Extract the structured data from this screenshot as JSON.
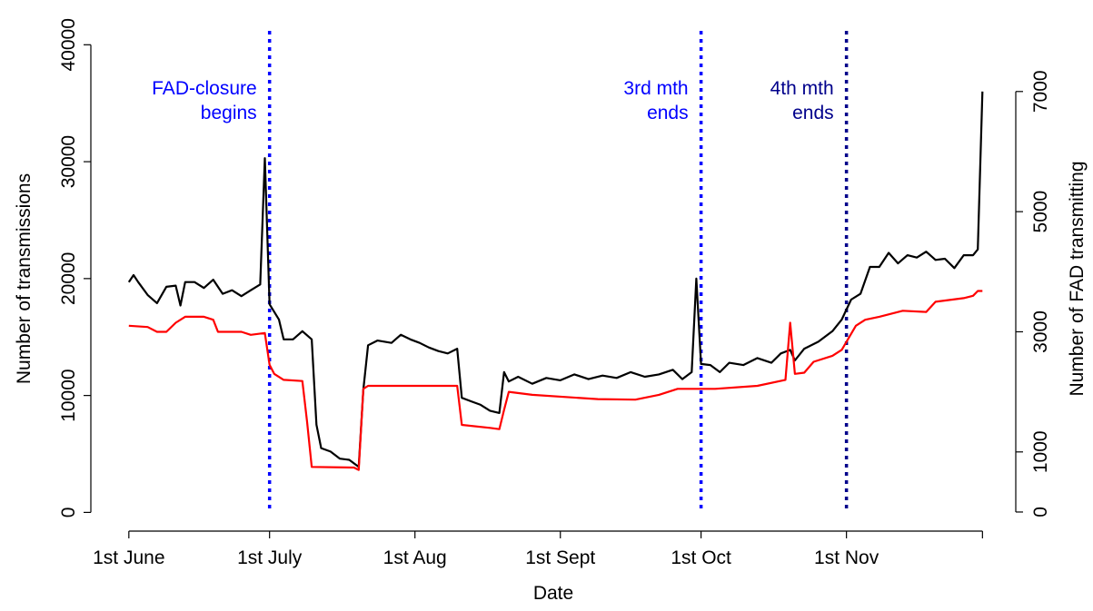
{
  "chart_data": {
    "type": "line",
    "x_label": "Date",
    "y_label": "Number of transmissions",
    "y2_label": "Number of FAD transmitting",
    "xlim": [
      -8.1,
      189.1
    ],
    "xticks": [
      {
        "value": 0,
        "label": "1st June"
      },
      {
        "value": 30,
        "label": "1st July"
      },
      {
        "value": 61,
        "label": "1st Aug"
      },
      {
        "value": 92,
        "label": "1st Sept"
      },
      {
        "value": 122,
        "label": "1st Oct"
      },
      {
        "value": 153,
        "label": "1st Nov"
      },
      {
        "value": 182,
        "label": null
      }
    ],
    "ylim": [
      -1600,
      41500
    ],
    "yticks": [
      0,
      10000,
      20000,
      30000,
      40000
    ],
    "y2lim": [
      -318,
      8070
    ],
    "y2ticks": [
      0,
      1000,
      3000,
      5000,
      7000
    ],
    "series": [
      {
        "name": "Number of transmissions",
        "color": "#000000",
        "axis": "y",
        "x": [
          0,
          1,
          2,
          4,
          6,
          8,
          10,
          11,
          12,
          14,
          16,
          18,
          20,
          22,
          24,
          26,
          28,
          29,
          30,
          32,
          33,
          35,
          37,
          39,
          40,
          41,
          43,
          45,
          47,
          49,
          50,
          51,
          53,
          56,
          58,
          60,
          62,
          64,
          66,
          68,
          70,
          71,
          73,
          75,
          77,
          79,
          80,
          81,
          83,
          86,
          89,
          92,
          95,
          98,
          101,
          104,
          107,
          110,
          113,
          116,
          118,
          120,
          121,
          122,
          124,
          126,
          128,
          131,
          134,
          137,
          139,
          141,
          142,
          144,
          147,
          150,
          152,
          154,
          156,
          158,
          160,
          162,
          164,
          166,
          168,
          170,
          172,
          174,
          176,
          178,
          180,
          181,
          182
        ],
        "values": [
          19700,
          20300,
          19700,
          18600,
          17900,
          19300,
          19400,
          17700,
          19700,
          19700,
          19200,
          19900,
          18700,
          19000,
          18500,
          19000,
          19500,
          30300,
          17800,
          16500,
          14800,
          14800,
          15500,
          14800,
          7500,
          5500,
          5200,
          4600,
          4500,
          3900,
          10500,
          14300,
          14700,
          14500,
          15200,
          14800,
          14500,
          14100,
          13800,
          13600,
          14000,
          9800,
          9500,
          9200,
          8700,
          8500,
          12000,
          11200,
          11600,
          11000,
          11500,
          11300,
          11800,
          11400,
          11700,
          11500,
          12000,
          11600,
          11800,
          12200,
          11400,
          12000,
          20000,
          12700,
          12600,
          12000,
          12800,
          12600,
          13200,
          12800,
          13600,
          13900,
          13000,
          14000,
          14600,
          15500,
          16500,
          18200,
          18700,
          21000,
          21000,
          22200,
          21300,
          22000,
          21800,
          22300,
          21600,
          21700,
          20900,
          22000,
          22000,
          22500,
          36000
        ]
      },
      {
        "name": "Number of FAD transmitting",
        "color": "#ff0000",
        "axis": "y2",
        "x": [
          0,
          4,
          6,
          8,
          10,
          12,
          16,
          18,
          19,
          24,
          26,
          29,
          30,
          31,
          33,
          37,
          38,
          39,
          48,
          49,
          50,
          51,
          70,
          71,
          77,
          79,
          80,
          81,
          86,
          100,
          108,
          113,
          117,
          125,
          134,
          140,
          141,
          142,
          144,
          146,
          150,
          152,
          155,
          157,
          160,
          165,
          170,
          172,
          178,
          180,
          181,
          182
        ],
        "values": [
          3100,
          3080,
          3000,
          3000,
          3150,
          3250,
          3250,
          3200,
          3000,
          3000,
          2950,
          2980,
          2450,
          2300,
          2200,
          2180,
          1500,
          750,
          740,
          700,
          2050,
          2100,
          2100,
          1450,
          1400,
          1380,
          1700,
          2000,
          1950,
          1880,
          1870,
          1950,
          2050,
          2050,
          2100,
          2200,
          3150,
          2300,
          2320,
          2500,
          2600,
          2700,
          3100,
          3200,
          3250,
          3350,
          3330,
          3500,
          3560,
          3600,
          3680,
          3680
        ]
      }
    ],
    "vlines": [
      {
        "x": 30,
        "color": "#0000ff",
        "label": [
          "FAD-closure",
          "begins"
        ]
      },
      {
        "x": 122,
        "color": "#0000ff",
        "label": [
          "3rd mth",
          "ends"
        ]
      },
      {
        "x": 153,
        "color": "#00008b",
        "label": [
          "4th mth",
          "ends"
        ]
      }
    ]
  }
}
